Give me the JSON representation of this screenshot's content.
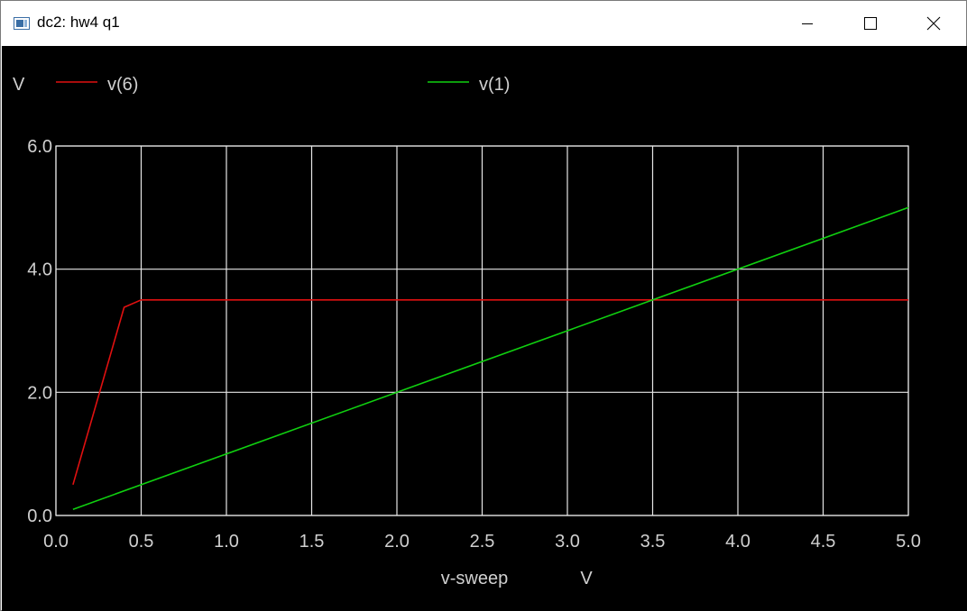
{
  "window": {
    "title": "dc2: hw4 q1",
    "icons": {
      "app": "plot-window-icon",
      "minimize": "minimize-icon",
      "maximize": "maximize-icon",
      "close": "close-icon"
    }
  },
  "colors": {
    "background": "#000000",
    "grid": "#e6e6e6",
    "text": "#d0d0d0",
    "v6": "#e01010",
    "v1": "#10d010"
  },
  "chart_data": {
    "type": "line",
    "ylabel": "V",
    "xlabel": "v-sweep",
    "xunit": "V",
    "xlim": [
      0.0,
      5.0
    ],
    "ylim": [
      0.0,
      6.0
    ],
    "xticks": [
      "0.0",
      "0.5",
      "1.0",
      "1.5",
      "2.0",
      "2.5",
      "3.0",
      "3.5",
      "4.0",
      "4.5",
      "5.0"
    ],
    "yticks": [
      "0.0",
      "2.0",
      "4.0",
      "6.0"
    ],
    "grid": true,
    "legend_position": "top",
    "series": [
      {
        "name": "v(6)",
        "color": "#e01010",
        "x": [
          0.1,
          0.4,
          0.5,
          5.0
        ],
        "y": [
          0.5,
          3.38,
          3.5,
          3.5
        ]
      },
      {
        "name": "v(1)",
        "color": "#10d010",
        "x": [
          0.1,
          5.0
        ],
        "y": [
          0.1,
          5.0
        ]
      }
    ]
  }
}
